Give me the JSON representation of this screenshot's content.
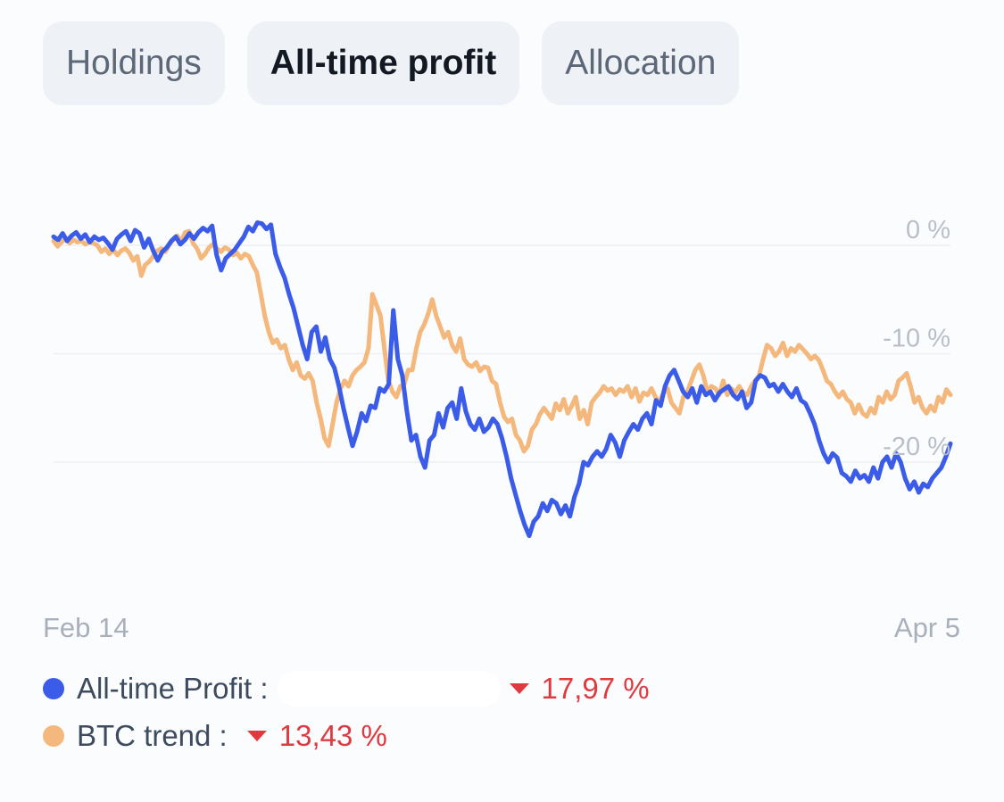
{
  "tabs": [
    {
      "label": "Holdings",
      "active": false
    },
    {
      "label": "All-time profit",
      "active": true
    },
    {
      "label": "Allocation",
      "active": false
    }
  ],
  "legend": {
    "profit": {
      "label": "All-time Profit :",
      "value": "17,97 %",
      "direction": "down"
    },
    "btc": {
      "label": "BTC trend :",
      "value": "13,43 %",
      "direction": "down"
    }
  },
  "colors": {
    "profit": "#3a5ce8",
    "btc": "#f4b77c",
    "negative": "#df3a3f"
  },
  "chart_data": {
    "type": "line",
    "x_start_label": "Feb 14",
    "x_end_label": "Apr 5",
    "yticks": [
      {
        "value": 0,
        "label": "0 %"
      },
      {
        "value": -10,
        "label": "-10 %"
      },
      {
        "value": -20,
        "label": "-20 %"
      }
    ],
    "ylim": [
      -32,
      3
    ],
    "grid": true,
    "series": [
      {
        "name": "All-time Profit",
        "color": "#3a5ce8",
        "values": [
          0.8,
          0.5,
          1.1,
          0.4,
          0.9,
          1.2,
          0.6,
          1.0,
          0.3,
          0.8,
          0.5,
          0.7,
          0.2,
          -0.4,
          0.6,
          1.0,
          1.3,
          0.4,
          1.4,
          1.1,
          -0.2,
          0.6,
          -0.5,
          -1.4,
          -0.6,
          -0.2,
          0.4,
          0.8,
          0.1,
          0.5,
          1.1,
          0.6,
          1.2,
          1.6,
          1.3,
          1.8,
          -0.9,
          -2.3,
          -1.2,
          -0.8,
          -0.4,
          0.2,
          0.8,
          1.7,
          1.3,
          2.1,
          2.0,
          1.5,
          1.9,
          -0.8,
          -2.0,
          -3.0,
          -4.5,
          -5.8,
          -7.5,
          -9.2,
          -10.5,
          -8.0,
          -7.5,
          -9.8,
          -8.5,
          -10.5,
          -11.3,
          -13.0,
          -15.0,
          -16.8,
          -18.5,
          -17.2,
          -15.5,
          -16.2,
          -14.8,
          -15.0,
          -13.2,
          -13.5,
          -12.8,
          -6.0,
          -10.5,
          -12.0,
          -15.3,
          -18.0,
          -17.5,
          -19.5,
          -20.5,
          -18.0,
          -17.5,
          -15.5,
          -16.8,
          -15.0,
          -14.5,
          -16.0,
          -13.2,
          -15.3,
          -16.5,
          -17.0,
          -16.0,
          -17.2,
          -16.8,
          -16.0,
          -16.5,
          -17.8,
          -19.5,
          -21.5,
          -23.0,
          -24.5,
          -25.8,
          -26.8,
          -25.5,
          -25.0,
          -23.8,
          -24.5,
          -23.5,
          -23.8,
          -24.8,
          -24.0,
          -25.0,
          -23.2,
          -22.0,
          -20.0,
          -20.3,
          -19.5,
          -19.0,
          -19.5,
          -18.8,
          -17.5,
          -18.2,
          -19.5,
          -18.0,
          -17.2,
          -16.5,
          -17.0,
          -16.0,
          -15.5,
          -16.5,
          -14.3,
          -14.8,
          -13.0,
          -12.0,
          -11.5,
          -12.5,
          -13.5,
          -14.0,
          -13.2,
          -14.5,
          -13.0,
          -13.8,
          -13.5,
          -14.3,
          -13.6,
          -13.3,
          -13.0,
          -13.8,
          -14.2,
          -13.5,
          -15.0,
          -14.5,
          -12.5,
          -12.0,
          -12.2,
          -13.0,
          -12.8,
          -13.5,
          -12.8,
          -13.5,
          -14.0,
          -13.2,
          -14.3,
          -14.6,
          -15.5,
          -16.5,
          -18.0,
          -19.2,
          -20.0,
          -19.2,
          -19.6,
          -21.0,
          -21.3,
          -21.8,
          -20.8,
          -21.5,
          -21.2,
          -21.8,
          -20.5,
          -21.5,
          -20.0,
          -19.5,
          -20.5,
          -19.2,
          -20.0,
          -21.5,
          -22.5,
          -21.8,
          -22.8,
          -22.0,
          -22.3,
          -21.5,
          -21.0,
          -20.5,
          -19.5,
          -18.3
        ]
      },
      {
        "name": "BTC trend",
        "color": "#f4b77c",
        "values": [
          0.4,
          -0.1,
          0.3,
          0.6,
          0.2,
          0.5,
          0.3,
          0.4,
          0.1,
          0.3,
          0.2,
          0.0,
          -0.6,
          -0.3,
          -0.8,
          -0.4,
          -0.9,
          -0.5,
          -0.3,
          -0.7,
          -1.4,
          -1.0,
          -2.8,
          -1.8,
          -1.5,
          -1.0,
          -0.5,
          -0.3,
          -0.6,
          0.0,
          0.5,
          0.9,
          0.3,
          1.2,
          1.3,
          0.2,
          -0.3,
          -1.2,
          -0.8,
          -0.2,
          0.1,
          -0.3,
          -0.6,
          -0.2,
          -0.4,
          -0.9,
          -0.7,
          -1.2,
          -0.8,
          -1.0,
          -1.8,
          -2.5,
          -4.5,
          -6.5,
          -8.0,
          -9.0,
          -8.7,
          -9.5,
          -9.2,
          -10.5,
          -11.5,
          -10.8,
          -12.0,
          -12.3,
          -11.8,
          -12.5,
          -14.5,
          -16.0,
          -17.8,
          -18.5,
          -16.5,
          -14.5,
          -13.2,
          -12.5,
          -13.0,
          -12.0,
          -11.5,
          -11.2,
          -10.8,
          -9.5,
          -4.5,
          -5.5,
          -6.5,
          -9.5,
          -12.5,
          -13.5,
          -14.0,
          -13.0,
          -12.8,
          -11.5,
          -11.5,
          -9.5,
          -8.0,
          -7.3,
          -6.3,
          -5.0,
          -6.5,
          -7.5,
          -8.5,
          -8.0,
          -9.2,
          -9.8,
          -8.6,
          -10.5,
          -11.0,
          -11.2,
          -10.8,
          -11.6,
          -11.2,
          -11.3,
          -12.5,
          -12.8,
          -14.5,
          -15.8,
          -16.3,
          -16.0,
          -17.5,
          -18.0,
          -19.0,
          -18.5,
          -17.0,
          -16.5,
          -15.6,
          -15.0,
          -15.5,
          -16.0,
          -14.6,
          -15.2,
          -14.2,
          -15.5,
          -14.8,
          -14.0,
          -16.0,
          -15.2,
          -16.5,
          -14.5,
          -14.0,
          -13.6,
          -13.0,
          -13.4,
          -13.2,
          -13.8,
          -13.3,
          -13.5,
          -13.0,
          -14.0,
          -13.2,
          -14.4,
          -13.6,
          -13.8,
          -13.2,
          -14.0,
          -14.5,
          -13.6,
          -13.2,
          -14.5,
          -15.0,
          -15.5,
          -14.0,
          -13.5,
          -12.5,
          -11.5,
          -11.0,
          -12.0,
          -13.5,
          -13.0,
          -13.2,
          -13.8,
          -12.5,
          -13.8,
          -13.2,
          -13.6,
          -13.0,
          -13.6,
          -13.8,
          -13.0,
          -12.5,
          -12.0,
          -10.5,
          -9.2,
          -9.5,
          -10.2,
          -9.8,
          -9.0,
          -10.2,
          -9.5,
          -9.8,
          -9.2,
          -9.6,
          -10.0,
          -10.5,
          -10.2,
          -10.6,
          -11.5,
          -12.5,
          -12.8,
          -13.5,
          -14.0,
          -13.5,
          -14.2,
          -14.5,
          -15.5,
          -14.7,
          -15.5,
          -15.8,
          -15.0,
          -15.5,
          -14.0,
          -14.5,
          -13.5,
          -14.2,
          -13.8,
          -12.5,
          -12.2,
          -11.8,
          -13.0,
          -14.5,
          -14.0,
          -15.0,
          -15.5,
          -14.8,
          -15.3,
          -14.0,
          -14.5,
          -13.3,
          -13.8
        ]
      }
    ]
  }
}
